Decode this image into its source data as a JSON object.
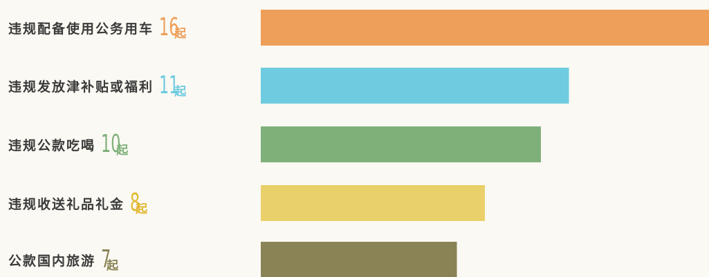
{
  "chart_data": {
    "type": "bar",
    "orientation": "horizontal",
    "categories": [
      "违规配备使用公务用车",
      "违规发放津补贴或福利",
      "违规公款吃喝",
      "违规收送礼品礼金",
      "公款国内旅游"
    ],
    "values": [
      16,
      11,
      10,
      8,
      7
    ],
    "unit": "起",
    "colors": [
      "#ee9f5a",
      "#6ecbe0",
      "#7fb07a",
      "#ead06a",
      "#8a8355"
    ],
    "value_colors": [
      "#ee9f5a",
      "#6ecbe0",
      "#7fb07a",
      "#e2b830",
      "#8a8355"
    ],
    "xlim": [
      0,
      16
    ],
    "title": "",
    "xlabel": "",
    "ylabel": ""
  }
}
